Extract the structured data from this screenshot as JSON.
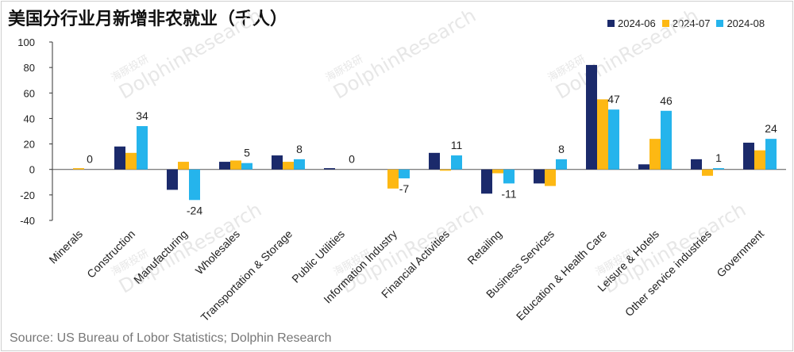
{
  "title": "美国分行业月新增非农就业（千人）",
  "source": "Source: US Bureau of Lobor Statistics; Dolphin Research",
  "watermark": {
    "cn": "海豚投研",
    "en": "DolphinResearch"
  },
  "colors": {
    "2024-06": "#1b2a6b",
    "2024-07": "#fdb813",
    "2024-08": "#25b4ec"
  },
  "chart_data": {
    "type": "bar",
    "title": "美国分行业月新增非农就业（千人）",
    "xlabel": "",
    "ylabel": "",
    "ylim": [
      -40,
      100
    ],
    "yticks": [
      -40,
      -20,
      0,
      20,
      40,
      60,
      80,
      100
    ],
    "grid": false,
    "legend_position": "top-right",
    "categories": [
      "Minerals",
      "Construction",
      "Manufacturing",
      "Wholesales",
      "Transportation & Storage",
      "Public Utilities",
      "Information Industry",
      "Financial Activities",
      "Retailing",
      "Business Services",
      "Education & Health Care",
      "Leisure & Hotels",
      "Other service industries",
      "Government"
    ],
    "series": [
      {
        "name": "2024-06",
        "values": [
          0,
          18,
          -16,
          6,
          11,
          1,
          0,
          13,
          -19,
          -11,
          82,
          4,
          8,
          21
        ]
      },
      {
        "name": "2024-07",
        "values": [
          1,
          13,
          6,
          7,
          6,
          0,
          -15,
          -1,
          -3,
          -13,
          55,
          24,
          -5,
          15
        ]
      },
      {
        "name": "2024-08",
        "values": [
          0,
          34,
          -24,
          5,
          8,
          0,
          -7,
          11,
          -11,
          8,
          47,
          46,
          1,
          24
        ]
      }
    ],
    "data_labels": {
      "series": "2024-08",
      "values": [
        0,
        34,
        -24,
        5,
        8,
        0,
        -7,
        11,
        -11,
        8,
        47,
        46,
        1,
        24
      ]
    }
  }
}
